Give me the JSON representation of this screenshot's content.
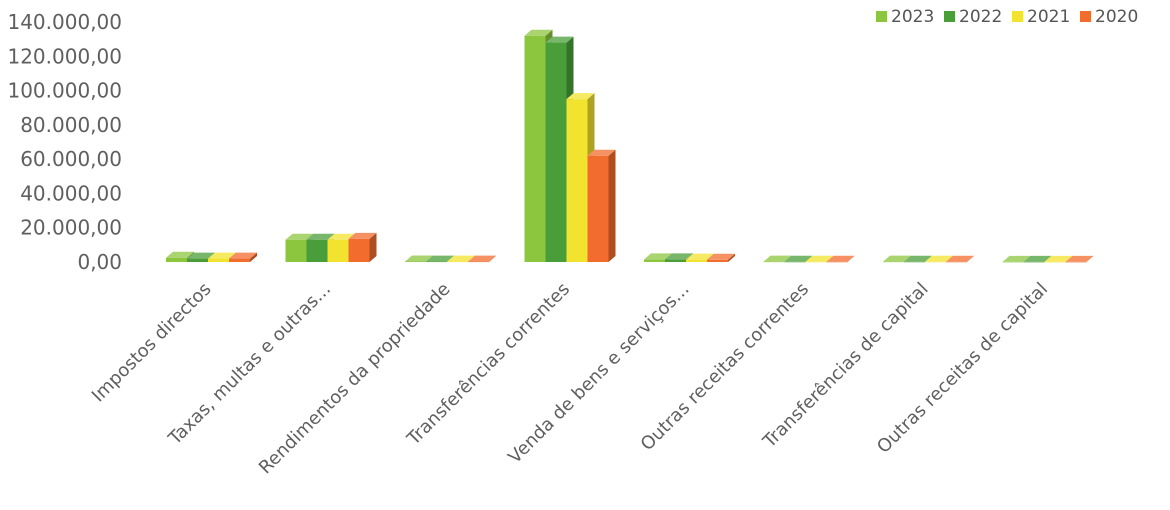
{
  "chart_data": {
    "type": "bar",
    "style": "3d-clustered-column",
    "categories": [
      "Impostos directos",
      "Taxas, multas e outras...",
      "Rendimentos da propriedade",
      "Transferências correntes",
      "Venda de bens e serviços...",
      "Outras receitas correntes",
      "Transferências de capital",
      "Outras receitas de capital"
    ],
    "series": [
      {
        "name": "2023",
        "color": "#8cc63f",
        "values": [
          2500,
          13000,
          300,
          132000,
          1500,
          200,
          200,
          100
        ]
      },
      {
        "name": "2022",
        "color": "#4a9e3a",
        "values": [
          2000,
          13000,
          250,
          128000,
          1500,
          150,
          150,
          100
        ]
      },
      {
        "name": "2021",
        "color": "#f2e32e",
        "values": [
          2000,
          13000,
          250,
          95000,
          1400,
          150,
          150,
          100
        ]
      },
      {
        "name": "2020",
        "color": "#f26c2e",
        "values": [
          2000,
          13500,
          250,
          62000,
          1300,
          150,
          150,
          100
        ]
      }
    ],
    "yticks": [
      "0,00",
      "20.000,00",
      "40.000,00",
      "60.000,00",
      "80.000,00",
      "100.000,00",
      "120.000,00",
      "140.000,00"
    ],
    "ylim": [
      0,
      140000
    ],
    "legend": "top-right",
    "grid": false
  }
}
